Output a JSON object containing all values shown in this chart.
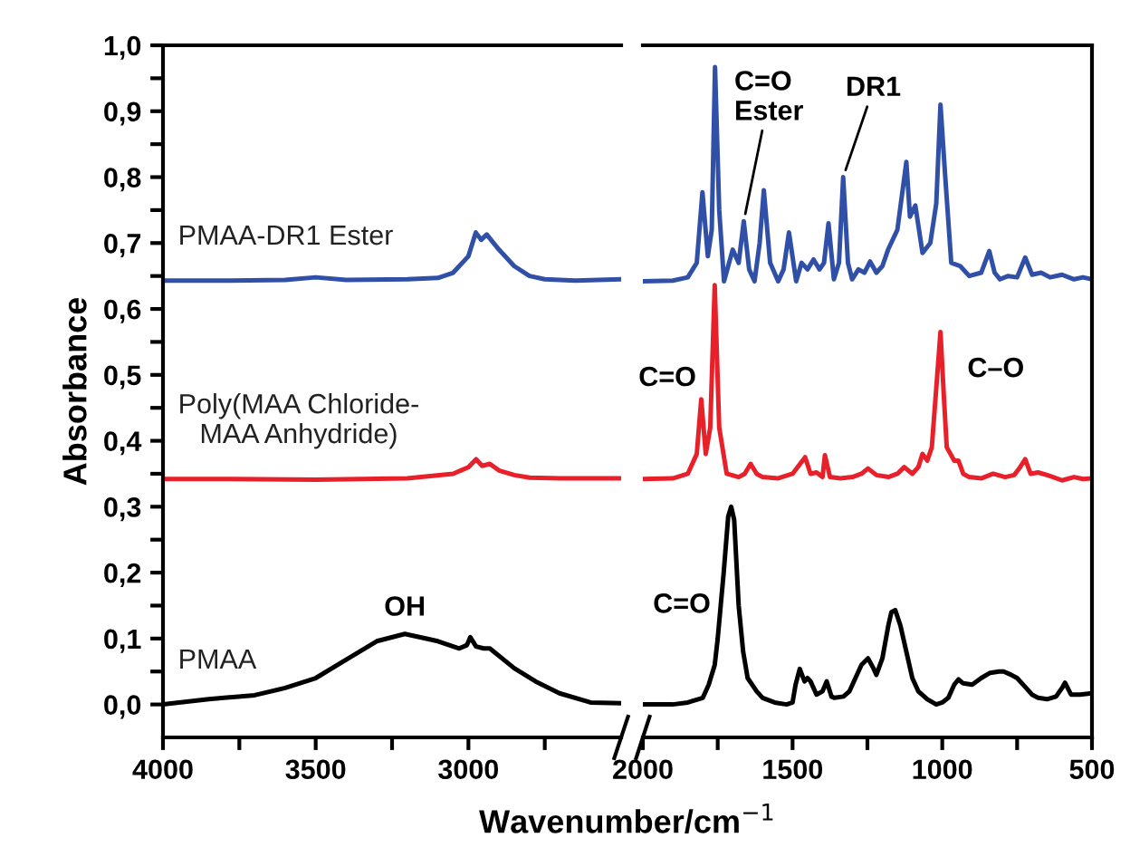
{
  "chart_data": [
    {
      "type": "line",
      "ylabel": "Absorbance",
      "xlabel": "Wavenumber/cm$^{−1}$",
      "xlim": [
        4000,
        2500
      ],
      "ylim": [
        -0.05,
        1.0
      ],
      "xticks": [
        4000,
        {
          "value": 3750,
          "label": null
        },
        3500,
        {
          "value": 3250,
          "label": null
        },
        3000,
        {
          "value": 2750,
          "label": null
        }
      ],
      "yticks": [
        {
          "value": 0.0,
          "label": "0,0"
        },
        {
          "value": 0.05,
          "label": null
        },
        {
          "value": 0.1,
          "label": "0,1"
        },
        {
          "value": 0.15,
          "label": null
        },
        {
          "value": 0.2,
          "label": "0,2"
        },
        {
          "value": 0.25,
          "label": null
        },
        {
          "value": 0.3,
          "label": "0,3"
        },
        {
          "value": 0.35,
          "label": null
        },
        {
          "value": 0.4,
          "label": "0,4"
        },
        {
          "value": 0.45,
          "label": null
        },
        {
          "value": 0.5,
          "label": "0,5"
        },
        {
          "value": 0.55,
          "label": null
        },
        {
          "value": 0.6,
          "label": "0,6"
        },
        {
          "value": 0.65,
          "label": null
        },
        {
          "value": 0.7,
          "label": "0,7"
        },
        {
          "value": 0.75,
          "label": null
        },
        {
          "value": 0.8,
          "label": "0,8"
        },
        {
          "value": 0.85,
          "label": null
        },
        {
          "value": 0.9,
          "label": "0,9"
        },
        {
          "value": 0.95,
          "label": null
        },
        {
          "value": 1.0,
          "label": "1,0"
        }
      ],
      "grid": false,
      "legend": false,
      "marker": "none",
      "line_style": "solid",
      "series": [
        {
          "name": "PMAA-DR1 Ester",
          "color": "#3050a8",
          "x": [
            4000,
            3800,
            3600,
            3500,
            3400,
            3200,
            3100,
            3050,
            3000,
            2976,
            2958,
            2940,
            2900,
            2850,
            2800,
            2750,
            2650,
            2500
          ],
          "values": [
            0.643,
            0.643,
            0.644,
            0.648,
            0.644,
            0.645,
            0.647,
            0.655,
            0.68,
            0.716,
            0.705,
            0.713,
            0.69,
            0.665,
            0.65,
            0.645,
            0.643,
            0.645
          ]
        },
        {
          "name": "Poly(MAA Chloride-\nMAA Anhydride)",
          "color": "#e8202a",
          "x": [
            4000,
            3800,
            3500,
            3200,
            3050,
            3000,
            2975,
            2955,
            2930,
            2900,
            2850,
            2800,
            2700,
            2500
          ],
          "values": [
            0.342,
            0.342,
            0.341,
            0.343,
            0.35,
            0.36,
            0.372,
            0.362,
            0.365,
            0.355,
            0.348,
            0.344,
            0.343,
            0.343
          ]
        },
        {
          "name": "PMAA",
          "color": "#000000",
          "x": [
            4000,
            3850,
            3700,
            3600,
            3500,
            3400,
            3300,
            3208,
            3100,
            3030,
            3005,
            2994,
            2975,
            2950,
            2930,
            2850,
            2780,
            2702,
            2600,
            2500
          ],
          "values": [
            0.0,
            0.008,
            0.014,
            0.025,
            0.04,
            0.068,
            0.096,
            0.107,
            0.096,
            0.085,
            0.09,
            0.102,
            0.088,
            0.085,
            0.085,
            0.055,
            0.035,
            0.017,
            0.003,
            0.002
          ]
        }
      ],
      "annotations": [
        {
          "text": "OH",
          "x": 3208,
          "y": 0.107
        }
      ]
    },
    {
      "type": "line",
      "xlim": [
        2000,
        500
      ],
      "ylim": [
        -0.05,
        1.0
      ],
      "xticks": [
        2000,
        {
          "value": 1750,
          "label": null
        },
        1500,
        {
          "value": 1250,
          "label": null
        },
        1000,
        {
          "value": 750,
          "label": null
        },
        500
      ],
      "grid": false,
      "legend": false,
      "marker": "none",
      "line_style": "solid",
      "series": [
        {
          "color": "#3050a8",
          "x": [
            2000,
            1900,
            1850,
            1820,
            1801,
            1783,
            1770,
            1759,
            1745,
            1729,
            1700,
            1680,
            1663,
            1645,
            1627,
            1610,
            1596,
            1575,
            1548,
            1530,
            1512,
            1488,
            1470,
            1450,
            1430,
            1410,
            1395,
            1380,
            1362,
            1345,
            1331,
            1315,
            1301,
            1280,
            1260,
            1241,
            1220,
            1200,
            1181,
            1150,
            1120,
            1108,
            1090,
            1066,
            1040,
            1020,
            1006,
            990,
            970,
            940,
            910,
            870,
            843,
            825,
            807,
            780,
            750,
            723,
            700,
            670,
            640,
            600,
            560,
            530,
            500
          ],
          "values": [
            0.642,
            0.643,
            0.648,
            0.67,
            0.777,
            0.68,
            0.72,
            0.967,
            0.75,
            0.642,
            0.69,
            0.67,
            0.733,
            0.66,
            0.642,
            0.7,
            0.78,
            0.67,
            0.642,
            0.66,
            0.716,
            0.642,
            0.67,
            0.66,
            0.675,
            0.66,
            0.67,
            0.73,
            0.645,
            0.67,
            0.8,
            0.67,
            0.645,
            0.66,
            0.655,
            0.672,
            0.655,
            0.665,
            0.69,
            0.72,
            0.823,
            0.74,
            0.757,
            0.685,
            0.7,
            0.76,
            0.91,
            0.8,
            0.67,
            0.665,
            0.65,
            0.655,
            0.688,
            0.655,
            0.645,
            0.65,
            0.648,
            0.678,
            0.652,
            0.655,
            0.648,
            0.652,
            0.645,
            0.648,
            0.645
          ]
        },
        {
          "color": "#e8202a",
          "x": [
            2000,
            1900,
            1850,
            1820,
            1805,
            1790,
            1775,
            1760,
            1745,
            1720,
            1680,
            1660,
            1640,
            1620,
            1600,
            1550,
            1500,
            1458,
            1440,
            1420,
            1400,
            1392,
            1375,
            1340,
            1300,
            1270,
            1248,
            1220,
            1180,
            1150,
            1127,
            1100,
            1080,
            1066,
            1050,
            1035,
            1020,
            1006,
            995,
            985,
            960,
            946,
            930,
            910,
            870,
            830,
            790,
            760,
            740,
            723,
            705,
            680,
            650,
            630,
            600,
            560,
            530,
            500
          ],
          "values": [
            0.342,
            0.343,
            0.35,
            0.38,
            0.463,
            0.38,
            0.42,
            0.636,
            0.42,
            0.35,
            0.345,
            0.35,
            0.365,
            0.35,
            0.345,
            0.343,
            0.35,
            0.375,
            0.35,
            0.352,
            0.345,
            0.378,
            0.345,
            0.343,
            0.345,
            0.35,
            0.358,
            0.348,
            0.345,
            0.35,
            0.36,
            0.35,
            0.36,
            0.38,
            0.37,
            0.39,
            0.48,
            0.565,
            0.47,
            0.39,
            0.37,
            0.37,
            0.35,
            0.345,
            0.343,
            0.35,
            0.345,
            0.348,
            0.36,
            0.372,
            0.35,
            0.352,
            0.348,
            0.345,
            0.34,
            0.345,
            0.342,
            0.343
          ]
        },
        {
          "color": "#000000",
          "x": [
            2000,
            1900,
            1850,
            1800,
            1780,
            1760,
            1750,
            1730,
            1715,
            1705,
            1695,
            1680,
            1665,
            1650,
            1620,
            1600,
            1560,
            1520,
            1500,
            1490,
            1476,
            1460,
            1450,
            1440,
            1420,
            1400,
            1386,
            1370,
            1360,
            1330,
            1310,
            1290,
            1270,
            1248,
            1230,
            1220,
            1200,
            1180,
            1170,
            1157,
            1140,
            1120,
            1100,
            1080,
            1050,
            1020,
            1000,
            980,
            960,
            946,
            930,
            900,
            870,
            840,
            810,
            795,
            770,
            750,
            720,
            700,
            680,
            650,
            620,
            600,
            590,
            570,
            540,
            500
          ],
          "values": [
            0.0,
            0.0,
            0.003,
            0.01,
            0.03,
            0.06,
            0.1,
            0.2,
            0.285,
            0.3,
            0.28,
            0.15,
            0.08,
            0.04,
            0.02,
            0.01,
            0.003,
            0.0,
            0.003,
            0.03,
            0.054,
            0.035,
            0.04,
            0.035,
            0.015,
            0.02,
            0.035,
            0.012,
            0.01,
            0.012,
            0.02,
            0.04,
            0.06,
            0.07,
            0.055,
            0.045,
            0.07,
            0.12,
            0.14,
            0.143,
            0.12,
            0.08,
            0.04,
            0.02,
            0.008,
            0.0,
            0.003,
            0.01,
            0.03,
            0.038,
            0.032,
            0.03,
            0.04,
            0.048,
            0.05,
            0.05,
            0.045,
            0.04,
            0.025,
            0.015,
            0.01,
            0.008,
            0.012,
            0.025,
            0.033,
            0.015,
            0.015,
            0.017
          ]
        }
      ],
      "annotations": [
        {
          "text": "C=O",
          "x": 1740,
          "y": 0.15
        },
        {
          "text": "C=O",
          "x": 1805,
          "y": 0.463
        },
        {
          "text": "C–O",
          "x": 1006,
          "y": 0.565
        },
        {
          "text": "C=O\nEster",
          "x": 1663,
          "y": 0.733
        },
        {
          "text": "DR1",
          "x": 1331,
          "y": 0.8
        }
      ]
    }
  ]
}
